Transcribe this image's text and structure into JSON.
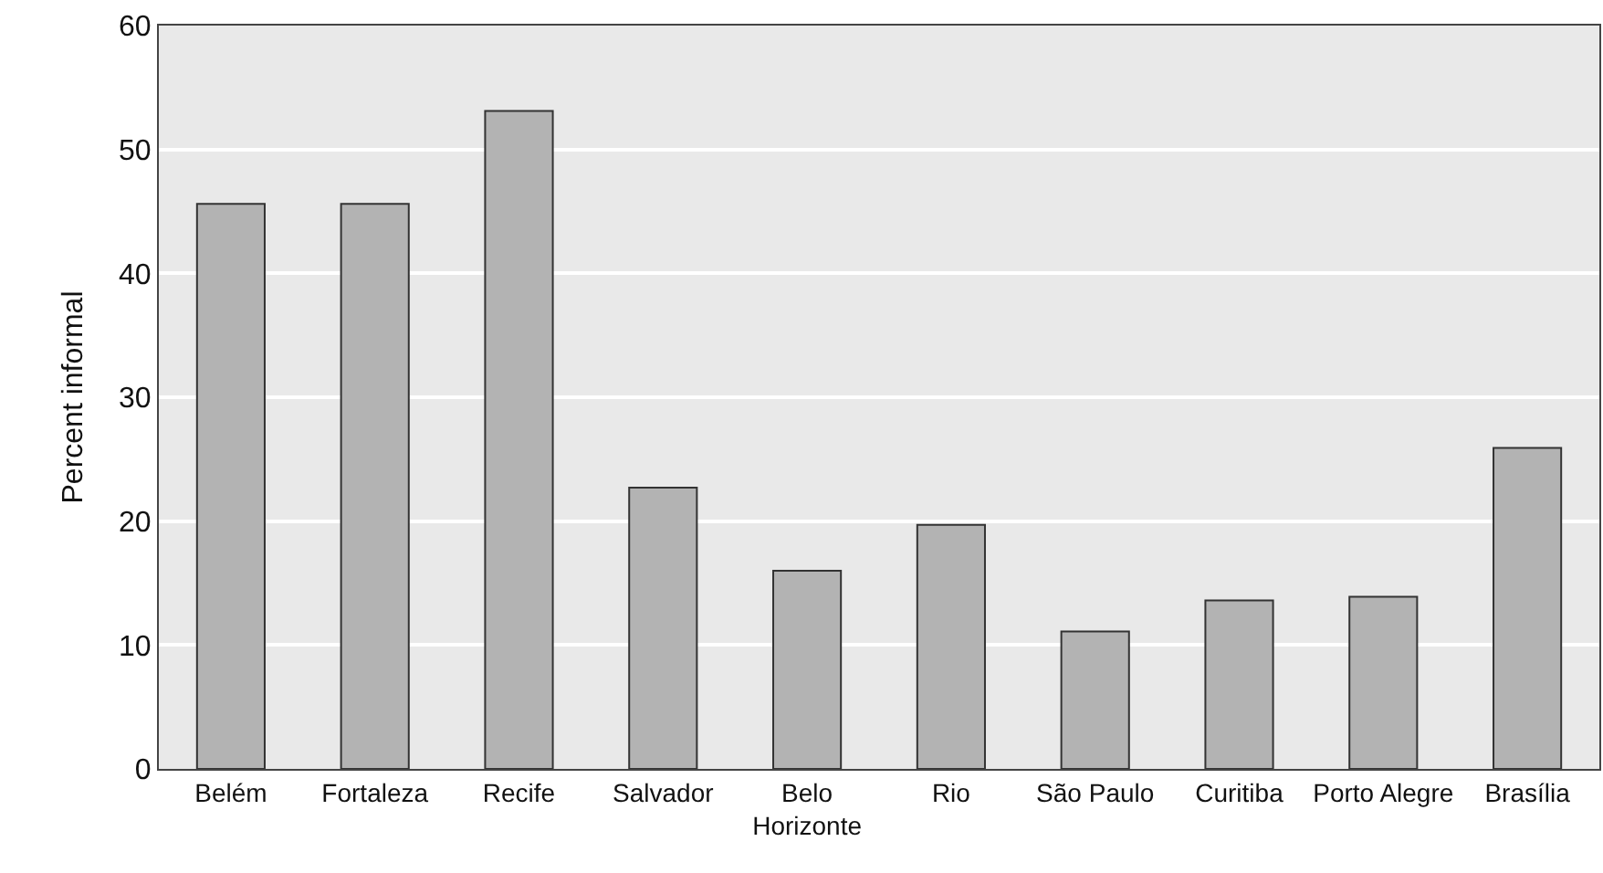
{
  "chart_data": {
    "type": "bar",
    "ylabel": "Percent informal",
    "categories": [
      "Belém",
      "Fortaleza",
      "Recife",
      "Salvador",
      "Belo Horizonte",
      "Rio",
      "São Paulo",
      "Curitiba",
      "Porto Alegre",
      "Brasília"
    ],
    "values": [
      45.6,
      45.6,
      53.1,
      22.7,
      16.0,
      19.7,
      11.1,
      13.6,
      13.9,
      25.9
    ],
    "color": "#b3b3b3",
    "ylim": [
      0,
      60
    ],
    "yticks": [
      0,
      10,
      20,
      30,
      40,
      50,
      60
    ],
    "grid": "y"
  }
}
